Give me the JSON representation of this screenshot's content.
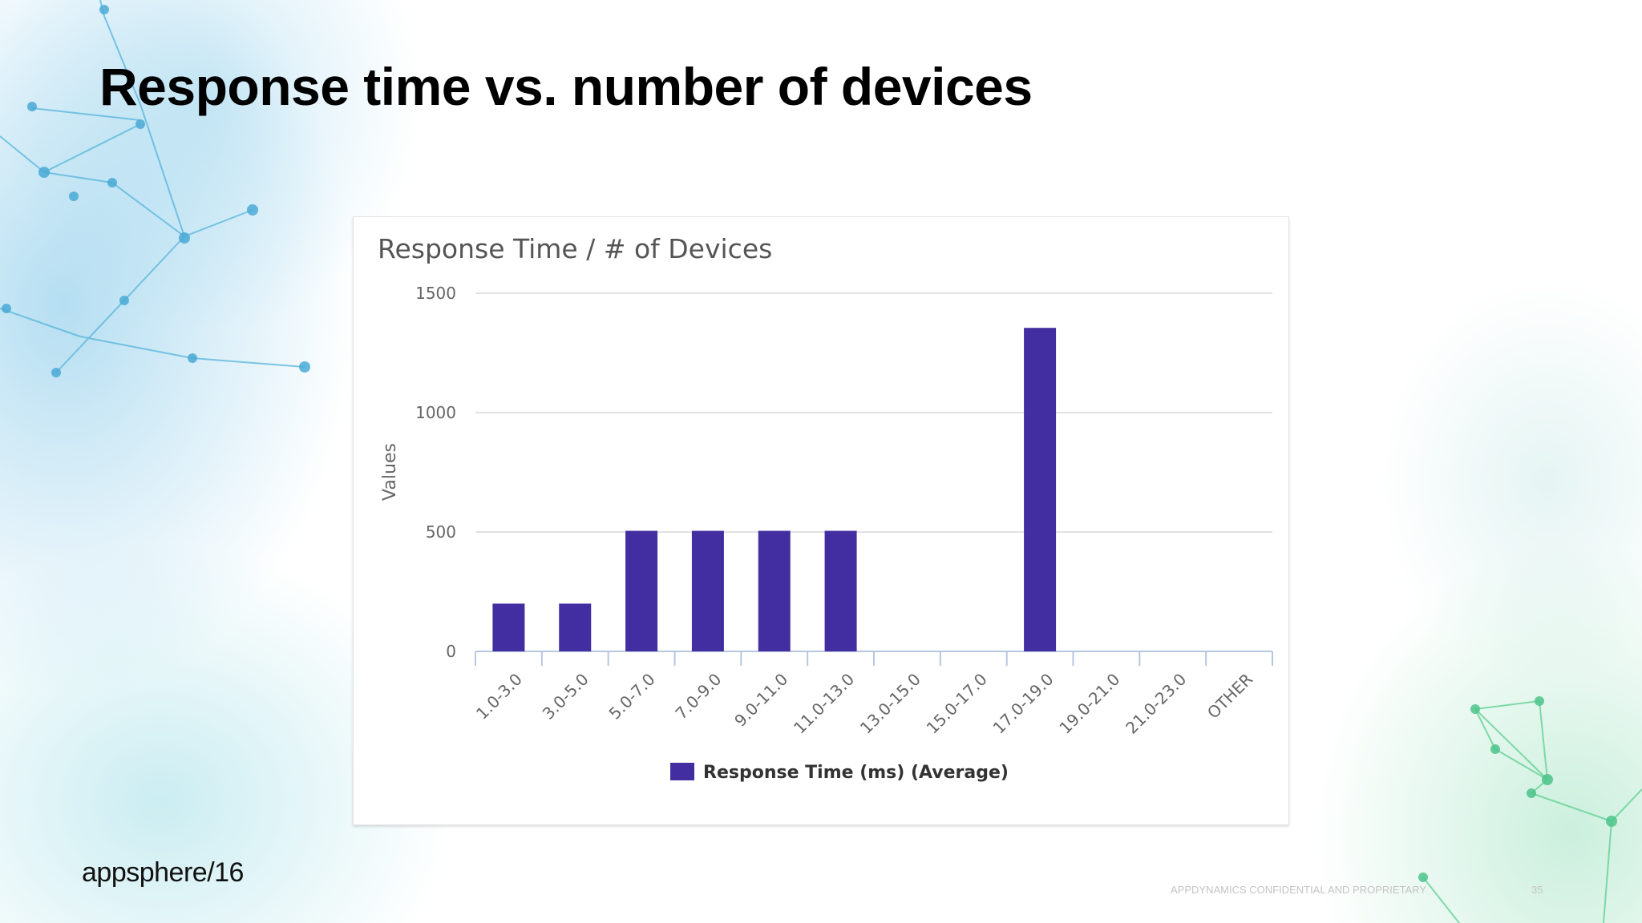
{
  "slide": {
    "title": "Response time vs. number of devices",
    "logo_text": "appsphere",
    "logo_suffix": "/16",
    "footer": "APPDYNAMICS CONFIDENTIAL AND PROPRIETARY",
    "page_number": "35"
  },
  "chart_data": {
    "type": "bar",
    "title": "Response Time / # of Devices",
    "xlabel": "",
    "ylabel": "Values",
    "categories": [
      "1.0-3.0",
      "3.0-5.0",
      "5.0-7.0",
      "7.0-9.0",
      "9.0-11.0",
      "11.0-13.0",
      "13.0-15.0",
      "15.0-17.0",
      "17.0-19.0",
      "19.0-21.0",
      "21.0-23.0",
      "OTHER"
    ],
    "series": [
      {
        "name": "Response Time (ms) (Average)",
        "values": [
          200,
          200,
          505,
          505,
          505,
          505,
          0,
          0,
          1355,
          0,
          0,
          0
        ],
        "color": "#432ea1"
      }
    ],
    "ylim": [
      0,
      1500
    ],
    "yticks": [
      0,
      500,
      1000,
      1500
    ],
    "grid": true,
    "legend_position": "bottom"
  }
}
